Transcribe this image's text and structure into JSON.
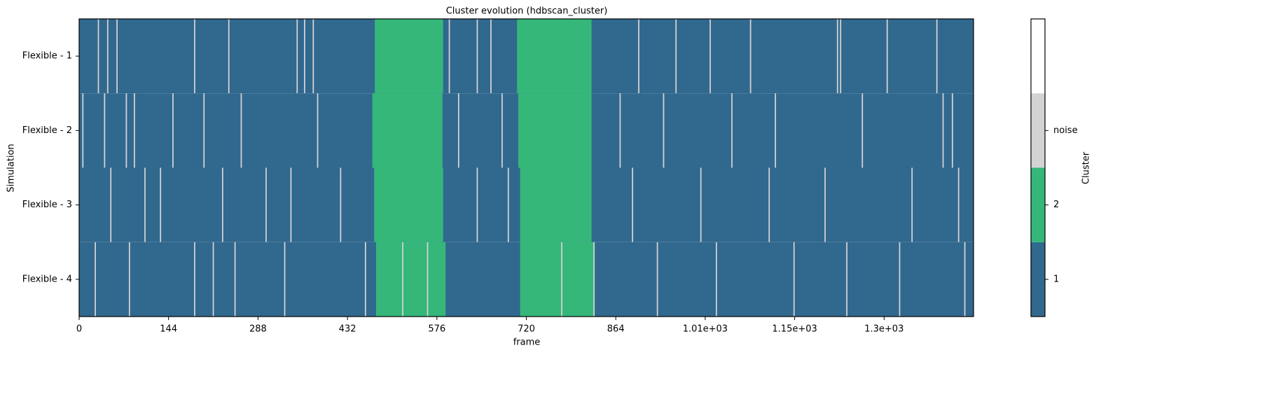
{
  "chart_data": {
    "type": "heatmap",
    "title": "Cluster evolution (hdbscan_cluster)",
    "xlabel": "frame",
    "ylabel": "Simulation",
    "rows": [
      "Flexible - 1",
      "Flexible - 2",
      "Flexible - 3",
      "Flexible - 4"
    ],
    "xlim": [
      0,
      1440
    ],
    "xticks": [
      0,
      144,
      288,
      432,
      576,
      720,
      864,
      {
        "value": 1008,
        "label": "1.01e+03"
      },
      {
        "value": 1152,
        "label": "1.15e+03"
      },
      {
        "value": 1296,
        "label": "1.3e+03"
      }
    ],
    "colorbar": {
      "label": "Cluster",
      "categories": [
        {
          "label": "1",
          "color": "#31688e"
        },
        {
          "label": "2",
          "color": "#35b779"
        },
        {
          "label": "noise",
          "color": "#d3d3d3"
        },
        {
          "label": null,
          "color": "#ffffff"
        }
      ]
    },
    "spans": [
      [
        [
          0,
          1440,
          "1"
        ],
        [
          476,
          586,
          "2"
        ],
        [
          705,
          825,
          "2"
        ],
        [
          30,
          32,
          "noise"
        ],
        [
          45,
          47,
          "noise"
        ],
        [
          60,
          62,
          "noise"
        ],
        [
          185,
          187,
          "noise"
        ],
        [
          240,
          242,
          "noise"
        ],
        [
          350,
          352,
          "noise"
        ],
        [
          362,
          364,
          "noise"
        ],
        [
          376,
          378,
          "noise"
        ],
        [
          595,
          597,
          "noise"
        ],
        [
          640,
          642,
          "noise"
        ],
        [
          662,
          664,
          "noise"
        ],
        [
          900,
          902,
          "noise"
        ],
        [
          960,
          962,
          "noise"
        ],
        [
          1015,
          1017,
          "noise"
        ],
        [
          1080,
          1082,
          "noise"
        ],
        [
          1220,
          1222,
          "noise"
        ],
        [
          1225,
          1227,
          "noise"
        ],
        [
          1300,
          1302,
          "noise"
        ],
        [
          1380,
          1382,
          "noise"
        ]
      ],
      [
        [
          0,
          1440,
          "1"
        ],
        [
          472,
          585,
          "2"
        ],
        [
          707,
          825,
          "2"
        ],
        [
          5,
          7,
          "noise"
        ],
        [
          40,
          42,
          "noise"
        ],
        [
          75,
          77,
          "noise"
        ],
        [
          88,
          90,
          "noise"
        ],
        [
          150,
          152,
          "noise"
        ],
        [
          200,
          202,
          "noise"
        ],
        [
          260,
          262,
          "noise"
        ],
        [
          383,
          385,
          "noise"
        ],
        [
          610,
          612,
          "noise"
        ],
        [
          680,
          682,
          "noise"
        ],
        [
          870,
          872,
          "noise"
        ],
        [
          940,
          942,
          "noise"
        ],
        [
          1050,
          1052,
          "noise"
        ],
        [
          1120,
          1122,
          "noise"
        ],
        [
          1260,
          1262,
          "noise"
        ],
        [
          1390,
          1392,
          "noise"
        ],
        [
          1405,
          1407,
          "noise"
        ]
      ],
      [
        [
          0,
          1440,
          "1"
        ],
        [
          475,
          586,
          "2"
        ],
        [
          710,
          825,
          "2"
        ],
        [
          50,
          52,
          "noise"
        ],
        [
          105,
          107,
          "noise"
        ],
        [
          130,
          132,
          "noise"
        ],
        [
          230,
          232,
          "noise"
        ],
        [
          300,
          302,
          "noise"
        ],
        [
          340,
          342,
          "noise"
        ],
        [
          420,
          422,
          "noise"
        ],
        [
          640,
          642,
          "noise"
        ],
        [
          690,
          692,
          "noise"
        ],
        [
          890,
          892,
          "noise"
        ],
        [
          1000,
          1002,
          "noise"
        ],
        [
          1110,
          1112,
          "noise"
        ],
        [
          1200,
          1202,
          "noise"
        ],
        [
          1340,
          1342,
          "noise"
        ],
        [
          1415,
          1417,
          "noise"
        ]
      ],
      [
        [
          0,
          1440,
          "1"
        ],
        [
          478,
          590,
          "2"
        ],
        [
          710,
          830,
          "2"
        ],
        [
          25,
          27,
          "noise"
        ],
        [
          80,
          82,
          "noise"
        ],
        [
          185,
          187,
          "noise"
        ],
        [
          215,
          217,
          "noise"
        ],
        [
          250,
          252,
          "noise"
        ],
        [
          330,
          332,
          "noise"
        ],
        [
          460,
          462,
          "noise"
        ],
        [
          520,
          522,
          "noise"
        ],
        [
          560,
          562,
          "noise"
        ],
        [
          776,
          778,
          "noise"
        ],
        [
          828,
          830,
          "noise"
        ],
        [
          930,
          932,
          "noise"
        ],
        [
          1025,
          1027,
          "noise"
        ],
        [
          1150,
          1152,
          "noise"
        ],
        [
          1235,
          1237,
          "noise"
        ],
        [
          1320,
          1322,
          "noise"
        ],
        [
          1425,
          1427,
          "noise"
        ]
      ]
    ]
  }
}
